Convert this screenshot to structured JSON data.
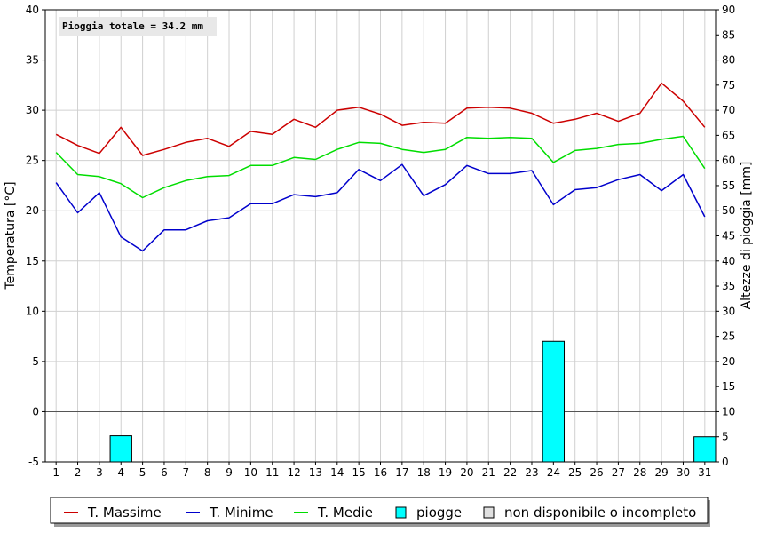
{
  "chart_data": {
    "type": "line",
    "annotation": "Pioggia totale = 34.2 mm",
    "ylabel_left": "Temperatura [°C]",
    "ylabel_right": "Altezze di pioggia [mm]",
    "xlabel": "",
    "ylim_left": [
      -5,
      40
    ],
    "ylim_right": [
      0,
      90
    ],
    "yticks_left": [
      -5,
      0,
      5,
      10,
      15,
      20,
      25,
      30,
      35,
      40
    ],
    "yticks_right": [
      0,
      5,
      10,
      15,
      20,
      25,
      30,
      35,
      40,
      45,
      50,
      55,
      60,
      65,
      70,
      75,
      80,
      85,
      90
    ],
    "grid": true,
    "legend_position": "bottom",
    "x": [
      1,
      2,
      3,
      4,
      5,
      6,
      7,
      8,
      9,
      10,
      11,
      12,
      13,
      14,
      15,
      16,
      17,
      18,
      19,
      20,
      21,
      22,
      23,
      24,
      25,
      26,
      27,
      28,
      29,
      30,
      31
    ],
    "series": [
      {
        "name": "T. Massime",
        "color": "#cc0000",
        "axis": "left",
        "values": [
          27.6,
          26.5,
          25.7,
          28.3,
          25.5,
          26.1,
          26.8,
          27.2,
          26.4,
          27.9,
          27.6,
          29.1,
          28.3,
          30.0,
          30.3,
          29.6,
          28.5,
          28.8,
          28.7,
          30.2,
          30.3,
          30.2,
          29.7,
          28.7,
          29.1,
          29.7,
          28.9,
          29.7,
          32.7,
          30.9,
          28.3
        ]
      },
      {
        "name": "T. Minime",
        "color": "#0000cc",
        "axis": "left",
        "values": [
          22.8,
          19.8,
          21.8,
          17.4,
          16.0,
          18.1,
          18.1,
          19.0,
          19.3,
          20.7,
          20.7,
          21.6,
          21.4,
          21.8,
          24.1,
          23.0,
          24.6,
          21.5,
          22.6,
          24.5,
          23.7,
          23.7,
          24.0,
          20.6,
          22.1,
          22.3,
          23.1,
          23.6,
          22.0,
          23.6,
          19.4
        ]
      },
      {
        "name": "T. Medie",
        "color": "#00dd00",
        "axis": "left",
        "values": [
          25.8,
          23.6,
          23.4,
          22.7,
          21.3,
          22.3,
          23.0,
          23.4,
          23.5,
          24.5,
          24.5,
          25.3,
          25.1,
          26.1,
          26.8,
          26.7,
          26.1,
          25.8,
          26.1,
          27.3,
          27.2,
          27.3,
          27.2,
          24.8,
          26.0,
          26.2,
          26.6,
          26.7,
          27.1,
          27.4,
          24.2
        ]
      },
      {
        "name": "piogge",
        "type": "bar",
        "color": "#00ffff",
        "axis": "right",
        "values": [
          0,
          0,
          0,
          5.2,
          0,
          0,
          0,
          0,
          0,
          0,
          0,
          0,
          0,
          0,
          0,
          0,
          0,
          0,
          0,
          0,
          0,
          0,
          0,
          24.0,
          0,
          0,
          0,
          0,
          0,
          0,
          5.0
        ]
      }
    ],
    "legend": [
      {
        "label": "T. Massime",
        "kind": "line",
        "color": "#cc0000"
      },
      {
        "label": "T. Minime",
        "kind": "line",
        "color": "#0000cc"
      },
      {
        "label": "T. Medie",
        "kind": "line",
        "color": "#00dd00"
      },
      {
        "label": "piogge",
        "kind": "box",
        "color": "#00ffff"
      },
      {
        "label": "non disponibile o incompleto",
        "kind": "box",
        "color": "#e0e0e0"
      }
    ]
  }
}
